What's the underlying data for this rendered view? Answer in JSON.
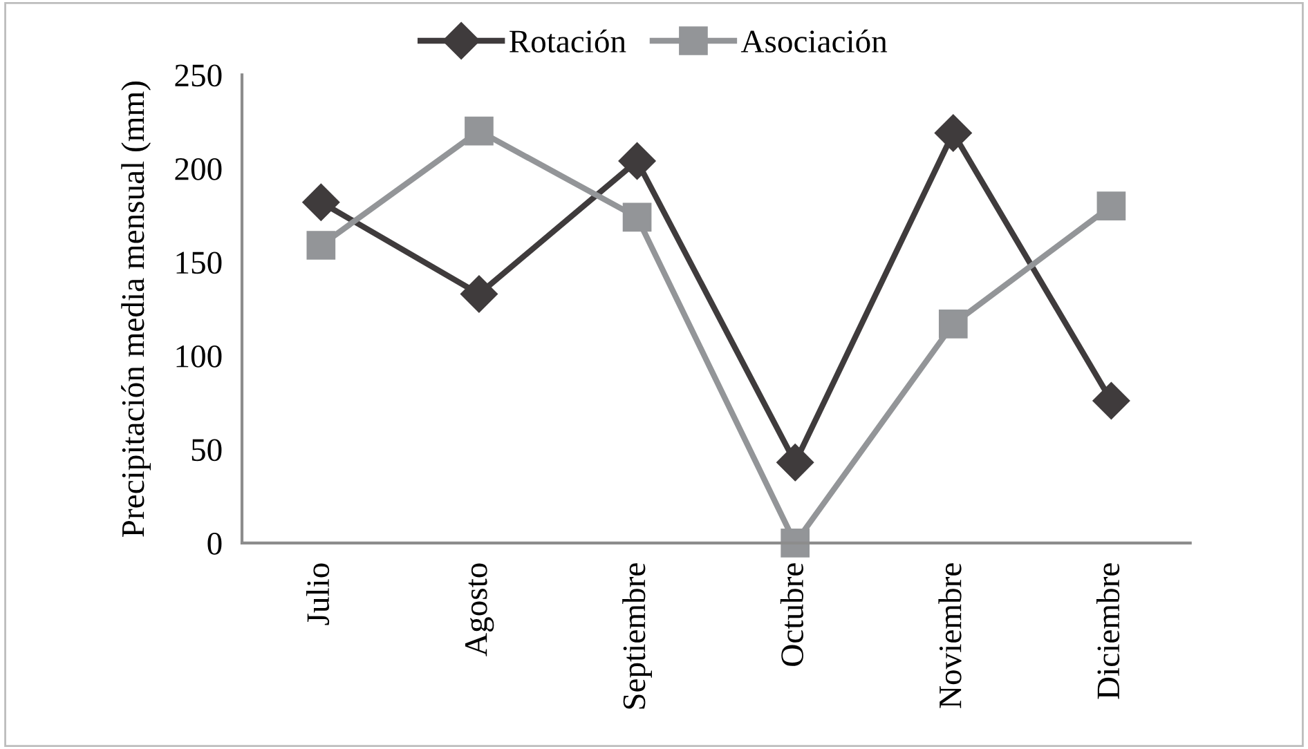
{
  "chart_data": {
    "type": "line",
    "ylabel": "Precipitación media mensual (mm)",
    "categories": [
      "Julio",
      "Agosto",
      "Septiembre",
      "Octubre",
      "Noviembre",
      "Diciembre"
    ],
    "series": [
      {
        "name": "Rotación",
        "color": "#3f3b3c",
        "marker": "diamond",
        "values": [
          182,
          133,
          204,
          43,
          219,
          76
        ]
      },
      {
        "name": "Asociación",
        "color": "#939598",
        "marker": "square",
        "values": [
          159,
          220,
          174,
          0,
          117,
          180
        ]
      }
    ],
    "ylim": [
      0,
      250
    ],
    "yticks": [
      0,
      50,
      100,
      150,
      200,
      250
    ],
    "grid": false,
    "legend": "top",
    "line_style": "solid"
  }
}
